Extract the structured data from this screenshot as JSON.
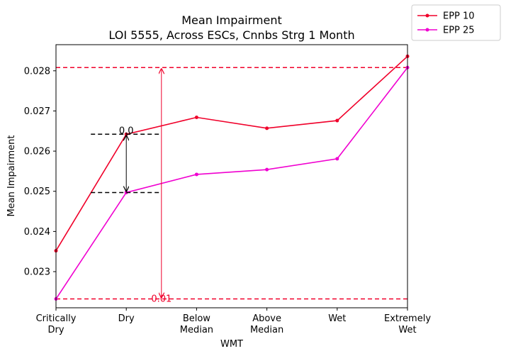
{
  "chart_data": {
    "type": "line",
    "title": "Mean Impairment",
    "subtitle": "LOI 5555, Across ESCs, Cnnbs Strg 1 Month",
    "xlabel": "WMT",
    "ylabel": "Mean Impairment",
    "categories": [
      [
        "Critically",
        "Dry"
      ],
      [
        "Dry"
      ],
      [
        "Below",
        "Median"
      ],
      [
        "Above",
        "Median"
      ],
      [
        "Wet"
      ],
      [
        "Extremely",
        "Wet"
      ]
    ],
    "ylim": [
      0.0221,
      0.02865
    ],
    "yticks": [
      "0.023",
      "0.024",
      "0.025",
      "0.026",
      "0.027",
      "0.028"
    ],
    "ytick_values": [
      0.023,
      0.024,
      0.025,
      0.026,
      0.027,
      0.028
    ],
    "series": [
      {
        "name": "EPP 10",
        "color": "#f0002a",
        "values": [
          0.02352,
          0.02642,
          0.02684,
          0.02657,
          0.02676,
          0.02836
        ]
      },
      {
        "name": "EPP 25",
        "color": "#f000d0",
        "values": [
          0.02232,
          0.02497,
          0.02542,
          0.02554,
          0.02581,
          0.02808
        ]
      }
    ],
    "annotations": {
      "hlines_red": [
        0.02808,
        0.02232
      ],
      "dry_gap": {
        "x_index": 1,
        "top": 0.02642,
        "bottom": 0.02497,
        "label": "0.0"
      },
      "range_arrow": {
        "x_index": 1.5,
        "top": 0.02808,
        "bottom": 0.02232,
        "label": "0.01"
      }
    },
    "legend_position": "top-right, outside plot"
  }
}
